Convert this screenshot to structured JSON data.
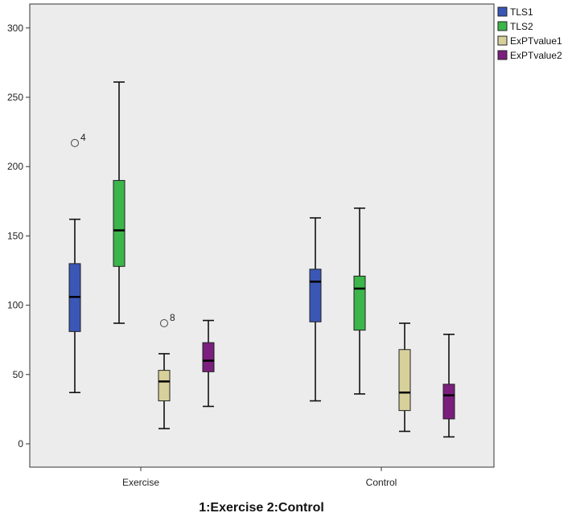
{
  "chart_data": {
    "type": "boxplot",
    "title": "",
    "xlabel": "1:Exercise  2:Control",
    "ylabel": "",
    "ylim": [
      -15,
      310
    ],
    "yticks": [
      0,
      50,
      100,
      150,
      200,
      250,
      300
    ],
    "grid": false,
    "legend_position": "top-right",
    "categories": [
      "Exercise",
      "Control"
    ],
    "series": [
      {
        "name": "TLS1",
        "color": "#3a57b6",
        "boxes": [
          {
            "min": 37,
            "q1": 81,
            "median": 106,
            "q3": 130,
            "max": 162,
            "outliers": [
              {
                "value": 217,
                "label": "4"
              }
            ]
          },
          {
            "min": 31,
            "q1": 88,
            "median": 117,
            "q3": 126,
            "max": 163,
            "outliers": []
          }
        ]
      },
      {
        "name": "TLS2",
        "color": "#3cb54a",
        "boxes": [
          {
            "min": 87,
            "q1": 128,
            "median": 154,
            "q3": 190,
            "max": 261,
            "outliers": []
          },
          {
            "min": 36,
            "q1": 82,
            "median": 112,
            "q3": 121,
            "max": 170,
            "outliers": []
          }
        ]
      },
      {
        "name": "ExPTvalue1",
        "color": "#d8d09a",
        "boxes": [
          {
            "min": 11,
            "q1": 31,
            "median": 45,
            "q3": 53,
            "max": 65,
            "outliers": [
              {
                "value": 87,
                "label": "8"
              }
            ]
          },
          {
            "min": 9,
            "q1": 24,
            "median": 37,
            "q3": 68,
            "max": 87,
            "outliers": []
          }
        ]
      },
      {
        "name": "ExPTvalue2",
        "color": "#7a1f7d",
        "boxes": [
          {
            "min": 27,
            "q1": 52,
            "median": 60,
            "q3": 73,
            "max": 89,
            "outliers": []
          },
          {
            "min": 5,
            "q1": 18,
            "median": 35,
            "q3": 43,
            "max": 79,
            "outliers": []
          }
        ]
      }
    ]
  }
}
